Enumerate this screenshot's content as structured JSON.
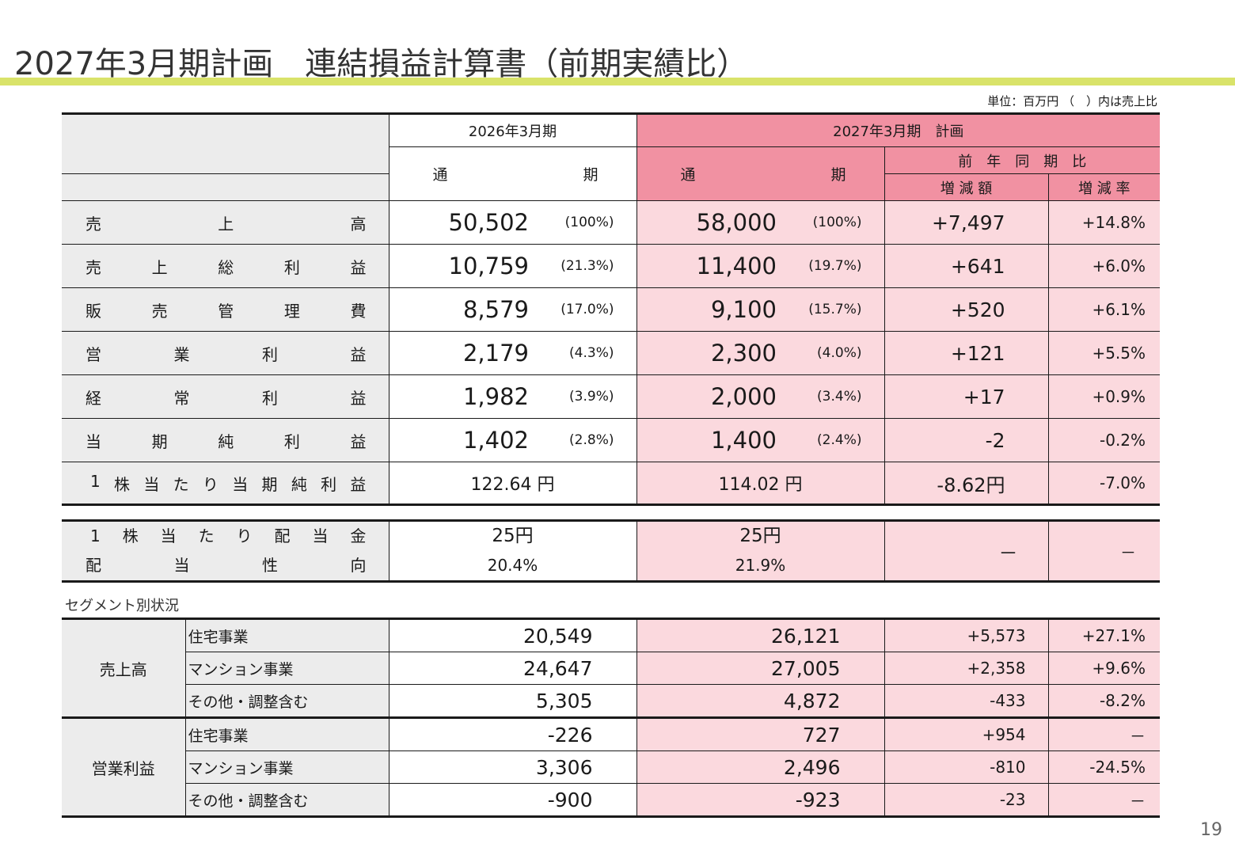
{
  "title": "2027年3月期計画　連結損益計算書（前期実績比）",
  "unit_note": "単位：百万円 （　）内は売上比",
  "page_number": "19",
  "header": {
    "prev_year": "2026年3月期",
    "plan_year": "2027年3月期　計画",
    "full_year_a": "通",
    "full_year_b": "期",
    "yoy": "前　年　同　期　比",
    "diff": "増 減 額",
    "rate": "増 減 率"
  },
  "rows": [
    {
      "label_chars": [
        "売",
        "上",
        "高"
      ],
      "prev": "50,502",
      "prev_pct": "(100%)",
      "plan": "58,000",
      "plan_pct": "(100%)",
      "diff": "+7,497",
      "rate": "+14.8%"
    },
    {
      "label_chars": [
        "売",
        "上",
        "総",
        "利",
        "益"
      ],
      "prev": "10,759",
      "prev_pct": "(21.3%)",
      "plan": "11,400",
      "plan_pct": "(19.7%)",
      "diff": "+641",
      "rate": "+6.0%"
    },
    {
      "label_chars": [
        "販",
        "売",
        "管",
        "理",
        "費"
      ],
      "prev": "8,579",
      "prev_pct": "(17.0%)",
      "plan": "9,100",
      "plan_pct": "(15.7%)",
      "diff": "+520",
      "rate": "+6.1%"
    },
    {
      "label_chars": [
        "営",
        "業",
        "利",
        "益"
      ],
      "prev": "2,179",
      "prev_pct": "(4.3%)",
      "plan": "2,300",
      "plan_pct": "(4.0%)",
      "diff": "+121",
      "rate": "+5.5%"
    },
    {
      "label_chars": [
        "経",
        "常",
        "利",
        "益"
      ],
      "prev": "1,982",
      "prev_pct": "(3.9%)",
      "plan": "2,000",
      "plan_pct": "(3.4%)",
      "diff": "+17",
      "rate": "+0.9%"
    },
    {
      "label_chars": [
        "当",
        "期",
        "純",
        "利",
        "益"
      ],
      "prev": "1,402",
      "prev_pct": "(2.8%)",
      "plan": "1,400",
      "plan_pct": "(2.4%)",
      "diff": "-2",
      "rate": "-0.2%"
    }
  ],
  "eps": {
    "label_chars": [
      "1",
      "株",
      "当",
      "た",
      "り",
      "当",
      "期",
      "純",
      "利",
      "益"
    ],
    "prev": "122.64 円",
    "plan": "114.02 円",
    "diff": "-8.62円",
    "rate": "-7.0%"
  },
  "dividend": {
    "label1_chars": [
      "1",
      "株",
      "当",
      "た",
      "り",
      "配",
      "当",
      "金"
    ],
    "label2_chars": [
      "配",
      "当",
      "性",
      "向"
    ],
    "prev_dividend": "25円",
    "prev_payout": "20.4%",
    "plan_dividend": "25円",
    "plan_payout": "21.9%",
    "diff": "－",
    "rate": "－"
  },
  "segment_caption": "セグメント別状況",
  "segments": {
    "sales_label": "売上高",
    "op_label": "営業利益",
    "sales": [
      {
        "name": "住宅事業",
        "prev": "20,549",
        "plan": "26,121",
        "diff": "+5,573",
        "rate": "+27.1%"
      },
      {
        "name": "マンション事業",
        "prev": "24,647",
        "plan": "27,005",
        "diff": "+2,358",
        "rate": "+9.6%"
      },
      {
        "name": "その他・調整含む",
        "prev": "5,305",
        "plan": "4,872",
        "diff": "-433",
        "rate": "-8.2%"
      }
    ],
    "op": [
      {
        "name": "住宅事業",
        "prev": "-226",
        "plan": "727",
        "diff": "+954",
        "rate": "－"
      },
      {
        "name": "マンション事業",
        "prev": "3,306",
        "plan": "2,496",
        "diff": "-810",
        "rate": "-24.5%"
      },
      {
        "name": "その他・調整含む",
        "prev": "-900",
        "plan": "-923",
        "diff": "-23",
        "rate": "－"
      }
    ]
  }
}
